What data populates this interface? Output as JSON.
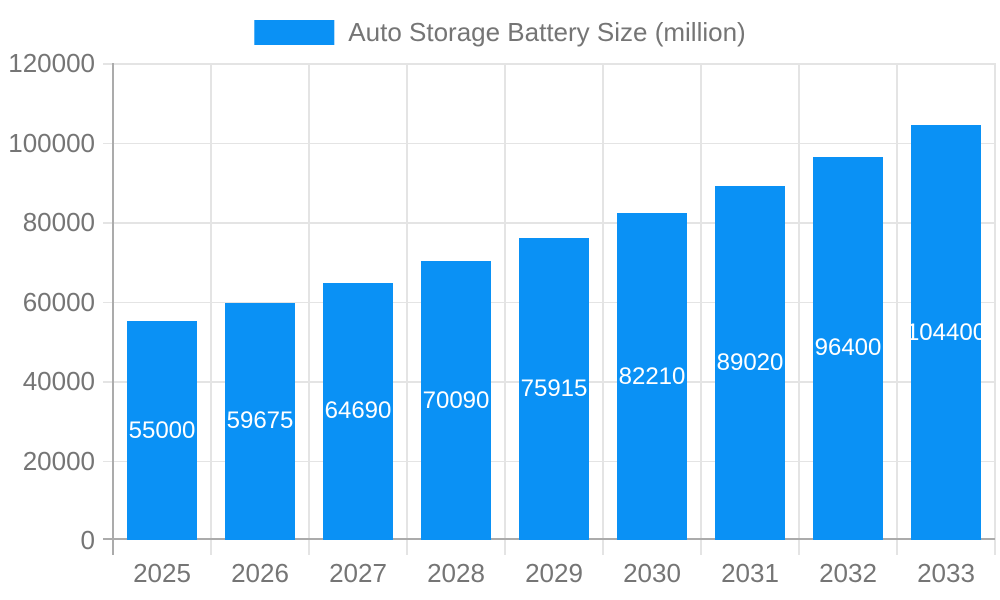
{
  "legend": {
    "label": "Auto Storage Battery Size (million)",
    "swatch_color": "#0a91f5"
  },
  "chart_data": {
    "type": "bar",
    "title": "Auto Storage Battery Size (million)",
    "series_name": "Auto Storage Battery Size (million)",
    "categories": [
      "2025",
      "2026",
      "2027",
      "2028",
      "2029",
      "2030",
      "2031",
      "2032",
      "2033"
    ],
    "values": [
      55000,
      59675,
      64690,
      70090,
      75915,
      82210,
      89020,
      96400,
      104400
    ],
    "data_label_values": [
      "55000",
      "59675",
      "64690",
      "70090",
      "75915",
      "82210",
      "89020",
      "96400",
      "104400"
    ],
    "xlabel": "",
    "ylabel": "",
    "ylim": [
      0,
      120000
    ],
    "ytick_step": 20000,
    "ytick_labels": [
      "0",
      "20000",
      "40000",
      "60000",
      "80000",
      "100000",
      "120000"
    ],
    "grid": true,
    "legend_position": "top",
    "bar_color": "#0a91f5",
    "data_label_color": "#ffffff",
    "data_label_position": "middle-of-bar"
  },
  "colors": {
    "bar": "#0a91f5",
    "gridline": "#e4e4e4",
    "axis": "#ababab",
    "tick_text": "#757575",
    "background": "#ffffff"
  }
}
